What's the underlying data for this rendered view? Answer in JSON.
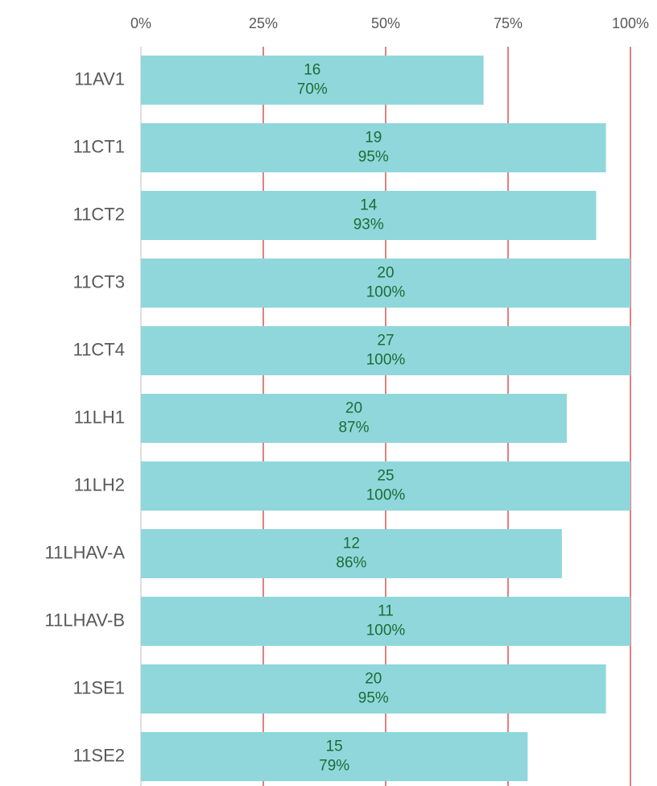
{
  "chart_data": {
    "type": "bar",
    "orientation": "horizontal",
    "categories": [
      "11AV1",
      "11CT1",
      "11CT2",
      "11CT3",
      "11CT4",
      "11LH1",
      "11LH2",
      "11LHAV-A",
      "11LHAV-B",
      "11SE1",
      "11SE2"
    ],
    "values": [
      70,
      95,
      93,
      100,
      100,
      87,
      100,
      86,
      100,
      95,
      79
    ],
    "value_labels": [
      "70%",
      "95%",
      "93%",
      "100%",
      "100%",
      "87%",
      "100%",
      "86%",
      "100%",
      "95%",
      "79%"
    ],
    "counts": [
      16,
      19,
      14,
      20,
      27,
      20,
      25,
      12,
      11,
      20,
      15
    ],
    "color": "#90d7dc",
    "grid_color": "#c00000",
    "grid": true,
    "xlim": [
      0,
      100
    ],
    "xticks": [
      {
        "value": 0,
        "label": "0%"
      },
      {
        "value": 25,
        "label": "25%"
      },
      {
        "value": 50,
        "label": "50%"
      },
      {
        "value": 75,
        "label": "75%"
      },
      {
        "value": 100,
        "label": "100%"
      }
    ]
  }
}
